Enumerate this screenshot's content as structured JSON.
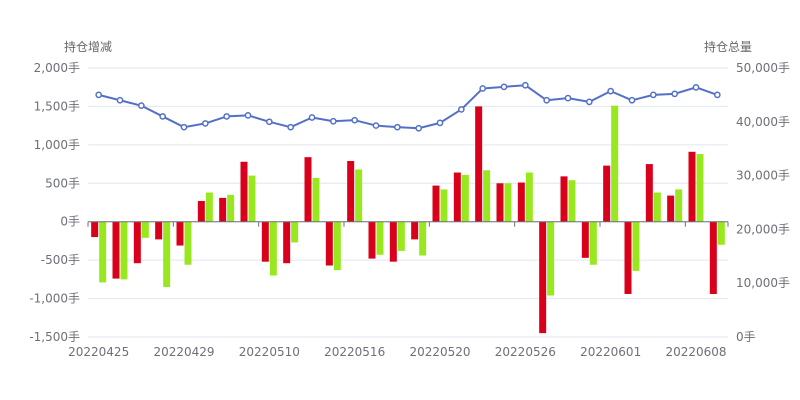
{
  "chart_data": {
    "type": "bar+line",
    "y_left_title": "持仓增减",
    "y_right_title": "持仓总量",
    "y_left_ticks": [
      "2,000手",
      "1,500手",
      "1,000手",
      "500手",
      "0手",
      "-500手",
      "-1,000手",
      "-1,500手"
    ],
    "y_right_ticks": [
      "50,000手",
      "40,000手",
      "30,000手",
      "20,000手",
      "10,000手",
      "0手"
    ],
    "ylim_left": [
      -1500,
      2000
    ],
    "ylim_right": [
      0,
      50000
    ],
    "x_tick_labels": [
      "20220425",
      "20220429",
      "20220510",
      "20220516",
      "20220520",
      "20220526",
      "20220601",
      "20220608"
    ],
    "x_tick_label_positions": [
      0,
      4,
      8,
      12,
      16,
      20,
      24,
      28
    ],
    "grid": true,
    "colors": {
      "bar_a": "#d9001b",
      "bar_b": "#99e81f",
      "line": "#5470c6",
      "grid": "#e0e6f1",
      "axis": "#6e7079"
    },
    "series": [
      {
        "values": [
          -200,
          -740,
          -540,
          -230,
          -310,
          270,
          310,
          780,
          -520,
          -540,
          840,
          -570,
          790,
          -480,
          -520,
          -230,
          470,
          640,
          1500,
          500,
          510,
          -1450,
          590,
          -470,
          730,
          -940,
          750,
          340,
          910,
          -940
        ]
      },
      {
        "values": [
          -790,
          -750,
          -210,
          -850,
          -560,
          380,
          350,
          600,
          -700,
          -270,
          570,
          -630,
          680,
          -430,
          -380,
          -440,
          420,
          610,
          670,
          500,
          640,
          -960,
          540,
          -560,
          1510,
          -640,
          380,
          420,
          880,
          -300
        ]
      },
      {
        "values": [
          45000,
          44000,
          43000,
          41000,
          39000,
          39700,
          41000,
          41200,
          40000,
          39000,
          40800,
          40100,
          40300,
          39300,
          39000,
          38800,
          39800,
          42300,
          46200,
          46500,
          46800,
          44000,
          44400,
          43700,
          45700,
          44000,
          45000,
          45200,
          46400,
          45000
        ]
      }
    ]
  }
}
